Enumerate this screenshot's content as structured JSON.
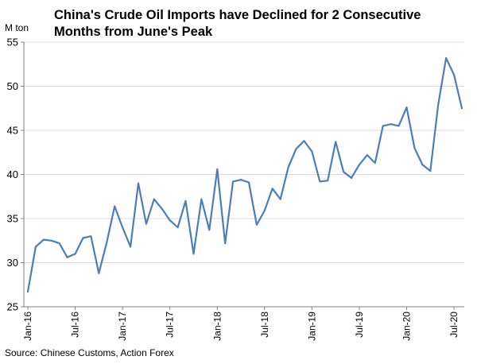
{
  "chart_data": {
    "type": "line",
    "title_lines": [
      "China's Crude Oil Imports have Declined for 2 Consecutive",
      "Months from June's Peak"
    ],
    "unit_label": "M ton",
    "source": "Source: Chinese Customs, Action Forex",
    "ylim": [
      25,
      55
    ],
    "y_ticks": [
      "25",
      "30",
      "35",
      "40",
      "45",
      "50",
      "55"
    ],
    "grid": "horizontal",
    "x_tick_labels": [
      "Jan-16",
      "Jul-16",
      "Jan-17",
      "Jul-17",
      "Jan-18",
      "Jul-18",
      "Jan-19",
      "Jul-19",
      "Jan-20",
      "Jul-20"
    ],
    "x_tick_every": 6,
    "line_color": "#4a7ebb",
    "grid_color": "#d9d9d9",
    "x": [
      "Jan-16",
      "Feb-16",
      "Mar-16",
      "Apr-16",
      "May-16",
      "Jun-16",
      "Jul-16",
      "Aug-16",
      "Sep-16",
      "Oct-16",
      "Nov-16",
      "Dec-16",
      "Jan-17",
      "Feb-17",
      "Mar-17",
      "Apr-17",
      "May-17",
      "Jun-17",
      "Jul-17",
      "Aug-17",
      "Sep-17",
      "Oct-17",
      "Nov-17",
      "Dec-17",
      "Jan-18",
      "Feb-18",
      "Mar-18",
      "Apr-18",
      "May-18",
      "Jun-18",
      "Jul-18",
      "Aug-18",
      "Sep-18",
      "Oct-18",
      "Nov-18",
      "Dec-18",
      "Jan-19",
      "Feb-19",
      "Mar-19",
      "Apr-19",
      "May-19",
      "Jun-19",
      "Jul-19",
      "Aug-19",
      "Sep-19",
      "Oct-19",
      "Nov-19",
      "Dec-19",
      "Jan-20",
      "Feb-20",
      "Mar-20",
      "Apr-20",
      "May-20",
      "Jun-20",
      "Jul-20",
      "Aug-20"
    ],
    "series": [
      {
        "values": [
          26.7,
          31.8,
          32.6,
          32.5,
          32.2,
          30.6,
          31.0,
          32.8,
          33.0,
          28.8,
          32.3,
          36.4,
          34.0,
          31.8,
          39.0,
          34.4,
          37.2,
          36.1,
          34.8,
          34.0,
          37.0,
          31.0,
          37.2,
          33.7,
          40.6,
          32.2,
          39.2,
          39.4,
          39.1,
          34.3,
          35.9,
          38.4,
          37.2,
          40.8,
          42.9,
          43.8,
          42.6,
          39.2,
          39.3,
          43.7,
          40.3,
          39.6,
          41.1,
          42.2,
          41.3,
          45.5,
          45.7,
          45.5,
          47.6,
          43.0,
          41.1,
          40.4,
          47.9,
          53.2,
          51.3,
          47.5
        ]
      }
    ]
  }
}
